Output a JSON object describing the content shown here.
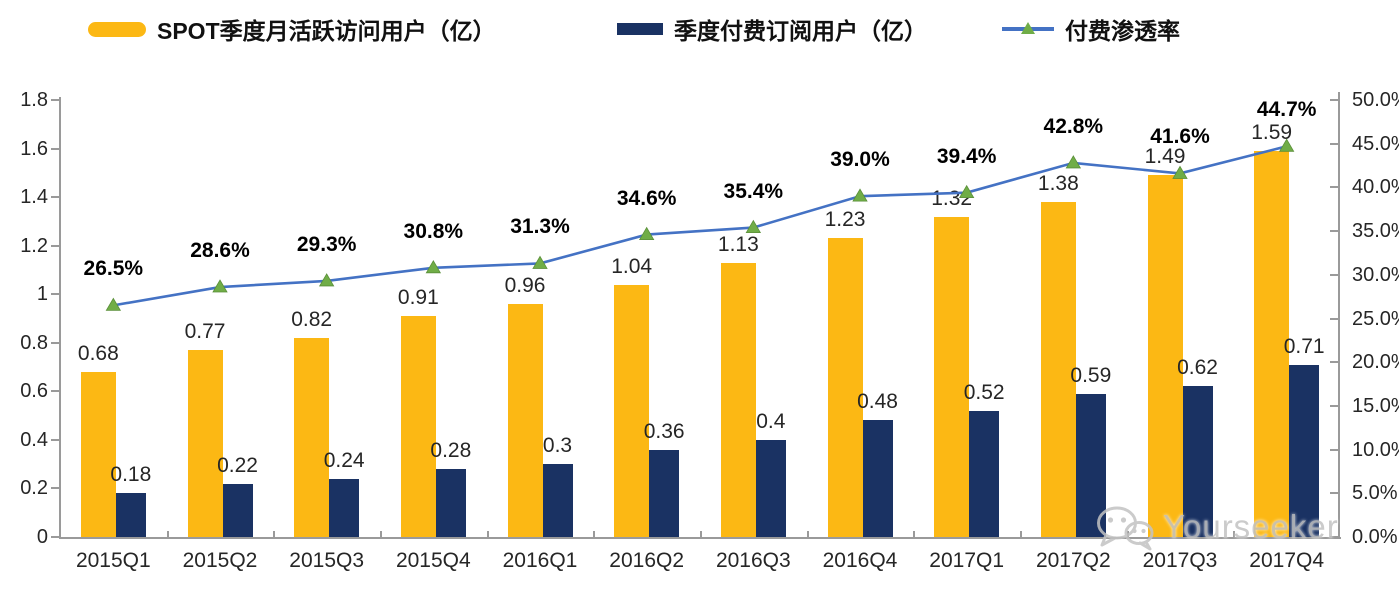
{
  "chart_data": {
    "type": "bar+line",
    "title": "",
    "categories": [
      "2015Q1",
      "2015Q2",
      "2015Q3",
      "2015Q4",
      "2016Q1",
      "2016Q2",
      "2016Q3",
      "2016Q4",
      "2017Q1",
      "2017Q2",
      "2017Q3",
      "2017Q4"
    ],
    "legend": [
      {
        "label": "SPOT季度月活跃访问用户（亿）",
        "color": "#FCB814",
        "type": "bar"
      },
      {
        "label": "季度付费订阅用户（亿）",
        "color": "#1A3263",
        "type": "bar"
      },
      {
        "label": "付费渗透率",
        "color": "#4472C4",
        "marker_color": "#70AD47",
        "type": "line"
      }
    ],
    "legend_position": "top",
    "grid": false,
    "series": [
      {
        "name": "SPOT季度月活跃访问用户（亿）",
        "type": "bar",
        "axis": "left",
        "color": "#FCB814",
        "values": [
          0.68,
          0.77,
          0.82,
          0.91,
          0.96,
          1.04,
          1.13,
          1.23,
          1.32,
          1.38,
          1.49,
          1.59
        ],
        "labels": [
          "0.68",
          "0.77",
          "0.82",
          "0.91",
          "0.96",
          "1.04",
          "1.13",
          "1.23",
          "1.32",
          "1.38",
          "1.49",
          "1.59"
        ]
      },
      {
        "name": "季度付费订阅用户（亿）",
        "type": "bar",
        "axis": "left",
        "color": "#1A3263",
        "values": [
          0.18,
          0.22,
          0.24,
          0.28,
          0.3,
          0.36,
          0.4,
          0.48,
          0.52,
          0.59,
          0.62,
          0.71
        ],
        "labels": [
          "0.18",
          "0.22",
          "0.24",
          "0.28",
          "0.3",
          "0.36",
          "0.4",
          "0.48",
          "0.52",
          "0.59",
          "0.62",
          "0.71"
        ]
      },
      {
        "name": "付费渗透率",
        "type": "line",
        "axis": "right",
        "color": "#4472C4",
        "marker": "triangle",
        "marker_color": "#70AD47",
        "values": [
          26.5,
          28.6,
          29.3,
          30.8,
          31.3,
          34.6,
          35.4,
          39.0,
          39.4,
          42.8,
          41.6,
          44.7
        ],
        "labels": [
          "26.5%",
          "28.6%",
          "29.3%",
          "30.8%",
          "31.3%",
          "34.6%",
          "35.4%",
          "39.0%",
          "39.4%",
          "42.8%",
          "41.6%",
          "44.7%"
        ]
      }
    ],
    "left_axis": {
      "min": 0,
      "max": 1.8,
      "step": 0.2,
      "ticks": [
        "0",
        "0.2",
        "0.4",
        "0.6",
        "0.8",
        "1",
        "1.2",
        "1.4",
        "1.6",
        "1.8"
      ]
    },
    "right_axis": {
      "min": 0,
      "max": 50,
      "step": 5,
      "ticks": [
        "0.0%",
        "5.0%",
        "10.0%",
        "15.0%",
        "20.0%",
        "25.0%",
        "30.0%",
        "35.0%",
        "40.0%",
        "45.0%",
        "50.0%"
      ]
    },
    "axis_color": "#9A9A9A",
    "text_color": "#262626"
  },
  "watermark": {
    "label": "Yourseeker"
  }
}
